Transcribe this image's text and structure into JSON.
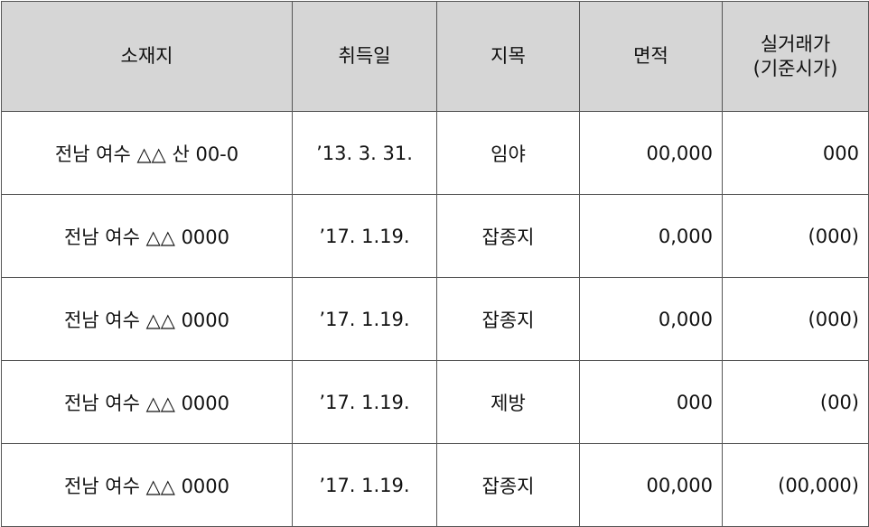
{
  "table": {
    "headers": [
      "소재지",
      "취득일",
      "지목",
      "면적"
    ],
    "price_header_line1": "실거래가",
    "price_header_line2": "(기준시가)",
    "rows": [
      {
        "location": "전남  여수  △△  산  00-0",
        "date": "’13. 3. 31.",
        "land_type": "임야",
        "area": "00,000",
        "price": "000"
      },
      {
        "location": "전남  여수  △△  0000",
        "date": "’17. 1.19.",
        "land_type": "잡종지",
        "area": "0,000",
        "price": "(000)"
      },
      {
        "location": "전남  여수  △△  0000",
        "date": "’17. 1.19.",
        "land_type": "잡종지",
        "area": "0,000",
        "price": "(000)"
      },
      {
        "location": "전남  여수  △△  0000",
        "date": "’17. 1.19.",
        "land_type": "제방",
        "area": "000",
        "price": "(00)"
      },
      {
        "location": "전남  여수  △△  0000",
        "date": "’17. 1.19.",
        "land_type": "잡종지",
        "area": "00,000",
        "price": "(00,000)"
      }
    ]
  }
}
